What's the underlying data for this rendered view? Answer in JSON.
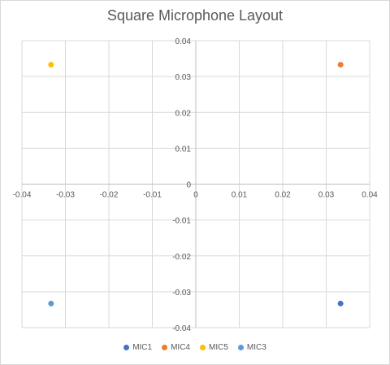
{
  "chart_data": {
    "type": "scatter",
    "title": "Square Microphone Layout",
    "xlabel": "",
    "ylabel": "",
    "xlim": [
      -0.04,
      0.04
    ],
    "ylim": [
      -0.04,
      0.04
    ],
    "x_ticks": [
      "-0.04",
      "-0.03",
      "-0.02",
      "-0.01",
      "0",
      "0.01",
      "0.02",
      "0.03",
      "0.04"
    ],
    "y_ticks": [
      "0.04",
      "0.03",
      "0.02",
      "0.01",
      "0",
      "-0.01",
      "-0.02",
      "-0.03",
      "-0.04"
    ],
    "grid": true,
    "legend_position": "bottom",
    "series": [
      {
        "name": "MIC1",
        "color": "#4472C4",
        "points": [
          {
            "x": 0.0333,
            "y": -0.0333
          }
        ]
      },
      {
        "name": "MIC4",
        "color": "#ED7D31",
        "points": [
          {
            "x": 0.0333,
            "y": 0.0333
          }
        ]
      },
      {
        "name": "MIC5",
        "color": "#FFC000",
        "points": [
          {
            "x": -0.0333,
            "y": 0.0333
          }
        ]
      },
      {
        "name": "MIC3",
        "color": "#5B9BD5",
        "points": [
          {
            "x": -0.0333,
            "y": -0.0333
          }
        ]
      }
    ]
  }
}
